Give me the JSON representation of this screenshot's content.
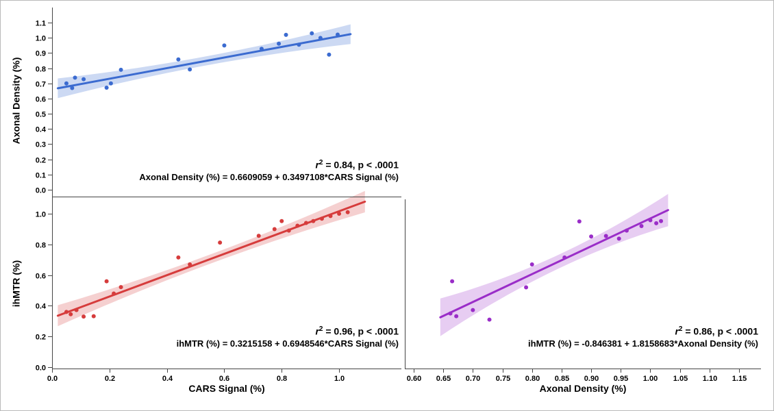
{
  "figure": {
    "background": "#ffffff",
    "border_color": "#b9b9b9",
    "axis_color": "#444444",
    "text_color": "#000000"
  },
  "chart_data": [
    {
      "id": "axonal-density-vs-cars-signal",
      "type": "scatter",
      "title": "",
      "xlabel": "CARS Signal (%)",
      "ylabel": "Axonal Density (%)",
      "color": "#3b6bd0",
      "band_color": "rgba(59,107,208,0.26)",
      "xlim": [
        0,
        1.217
      ],
      "ylim": [
        -0.032,
        1.2
      ],
      "x_ticks": [
        0,
        0.2,
        0.4,
        0.6,
        0.8,
        1.0
      ],
      "x_tick_labels": [
        "0.0",
        "0.2",
        "0.4",
        "0.6",
        "0.8",
        "1.0"
      ],
      "y_ticks": [
        0,
        0.1,
        0.2,
        0.3,
        0.4,
        0.5,
        0.6,
        0.7,
        0.8,
        0.9,
        1.0,
        1.1
      ],
      "y_tick_labels": [
        "0.0",
        "0.1",
        "0.2",
        "0.3",
        "0.4",
        "0.5",
        "0.6",
        "0.7",
        "0.8",
        "0.9",
        "1.0",
        "1.1"
      ],
      "points": [
        [
          0.05,
          0.7
        ],
        [
          0.07,
          0.67
        ],
        [
          0.08,
          0.738
        ],
        [
          0.11,
          0.728
        ],
        [
          0.19,
          0.672
        ],
        [
          0.205,
          0.7
        ],
        [
          0.24,
          0.79
        ],
        [
          0.44,
          0.858
        ],
        [
          0.48,
          0.792
        ],
        [
          0.6,
          0.95
        ],
        [
          0.73,
          0.928
        ],
        [
          0.79,
          0.962
        ],
        [
          0.815,
          1.02
        ],
        [
          0.86,
          0.955
        ],
        [
          0.905,
          1.03
        ],
        [
          0.935,
          1.0
        ],
        [
          0.965,
          0.89
        ],
        [
          0.995,
          1.022
        ]
      ],
      "fit": {
        "intercept": 0.6609059,
        "slope": 0.3497108,
        "x_start": 0.02,
        "x_end": 1.04,
        "band_center": 0.53,
        "band_half_mid": 0.03,
        "band_half_end": 0.065
      },
      "r_squared": 0.84,
      "annotation": {
        "r_label": "r",
        "sup": "2",
        "stats": " = 0.84, p < .0001",
        "equation": "Axonal Density (%) = 0.6609059 + 0.3497108*CARS Signal (%)"
      }
    },
    {
      "id": "ihmtr-vs-cars-signal",
      "type": "scatter",
      "title": "",
      "xlabel": "CARS Signal (%)",
      "ylabel": "ihMTR (%)",
      "color": "#d63c3c",
      "band_color": "rgba(214,60,60,0.24)",
      "xlim": [
        0,
        1.217
      ],
      "ylim": [
        -0.009,
        1.094
      ],
      "x_ticks": [
        0,
        0.2,
        0.4,
        0.6,
        0.8,
        1.0
      ],
      "x_tick_labels": [
        "0.0",
        "0.2",
        "0.4",
        "0.6",
        "0.8",
        "1.0"
      ],
      "y_ticks": [
        0,
        0.2,
        0.4,
        0.6,
        0.8,
        1.0
      ],
      "y_tick_labels": [
        "0.0",
        "0.2",
        "0.4",
        "0.6",
        "0.8",
        "1.0"
      ],
      "points": [
        [
          0.05,
          0.36
        ],
        [
          0.065,
          0.345
        ],
        [
          0.085,
          0.372
        ],
        [
          0.11,
          0.33
        ],
        [
          0.145,
          0.332
        ],
        [
          0.19,
          0.56
        ],
        [
          0.215,
          0.48
        ],
        [
          0.24,
          0.522
        ],
        [
          0.44,
          0.715
        ],
        [
          0.48,
          0.67
        ],
        [
          0.585,
          0.812
        ],
        [
          0.72,
          0.856
        ],
        [
          0.775,
          0.9
        ],
        [
          0.8,
          0.952
        ],
        [
          0.825,
          0.89
        ],
        [
          0.855,
          0.922
        ],
        [
          0.885,
          0.94
        ],
        [
          0.91,
          0.952
        ],
        [
          0.94,
          0.968
        ],
        [
          0.97,
          0.985
        ],
        [
          1.0,
          1.0
        ],
        [
          1.03,
          1.01
        ]
      ],
      "fit": {
        "intercept": 0.3215158,
        "slope": 0.6948546,
        "x_start": 0.02,
        "x_end": 1.09,
        "band_center": 0.55,
        "band_half_mid": 0.03,
        "band_half_end": 0.07
      },
      "r_squared": 0.96,
      "annotation": {
        "r_label": "r",
        "sup": "2",
        "stats": " = 0.96, p < .0001",
        "equation": "ihMTR (%) = 0.3215158 + 0.6948546*CARS Signal (%)"
      }
    },
    {
      "id": "ihmtr-vs-axonal-density",
      "type": "scatter",
      "title": "",
      "xlabel": "Axonal Density (%)",
      "ylabel": "ihMTR (%)",
      "color": "#9a2dc8",
      "band_color": "rgba(154,45,200,0.24)",
      "xlim": [
        0.585,
        1.187
      ],
      "ylim": [
        -0.009,
        1.094
      ],
      "x_ticks": [
        0.6,
        0.65,
        0.7,
        0.75,
        0.8,
        0.85,
        0.9,
        0.95,
        1.0,
        1.05,
        1.1,
        1.15
      ],
      "x_tick_labels": [
        "0.60",
        "0.65",
        "0.70",
        "0.75",
        "0.80",
        "0.85",
        "0.90",
        "0.95",
        "1.00",
        "1.05",
        "1.10",
        "1.15"
      ],
      "y_ticks": [
        0,
        0.2,
        0.4,
        0.6,
        0.8,
        1.0
      ],
      "y_tick_labels": [
        "0.0",
        "0.2",
        "0.4",
        "0.6",
        "0.8",
        "1.0"
      ],
      "points": [
        [
          0.665,
          0.56
        ],
        [
          0.662,
          0.35
        ],
        [
          0.672,
          0.332
        ],
        [
          0.7,
          0.372
        ],
        [
          0.728,
          0.31
        ],
        [
          0.79,
          0.52
        ],
        [
          0.8,
          0.67
        ],
        [
          0.855,
          0.715
        ],
        [
          0.88,
          0.95
        ],
        [
          0.9,
          0.852
        ],
        [
          0.925,
          0.855
        ],
        [
          0.947,
          0.838
        ],
        [
          0.96,
          0.89
        ],
        [
          0.985,
          0.92
        ],
        [
          1.0,
          0.958
        ],
        [
          1.01,
          0.938
        ],
        [
          1.018,
          0.952
        ]
      ],
      "fit": {
        "intercept": -0.846381,
        "slope": 1.8158683,
        "x_start": 0.645,
        "x_end": 1.03,
        "band_center": 0.85,
        "band_half_mid": 0.045,
        "band_half_end": 0.105
      },
      "r_squared": 0.86,
      "annotation": {
        "r_label": "r",
        "sup": "2",
        "stats": " = 0.86, p < .0001",
        "equation": "ihMTR (%) = -0.846381 + 1.8158683*Axonal Density (%)"
      }
    }
  ]
}
